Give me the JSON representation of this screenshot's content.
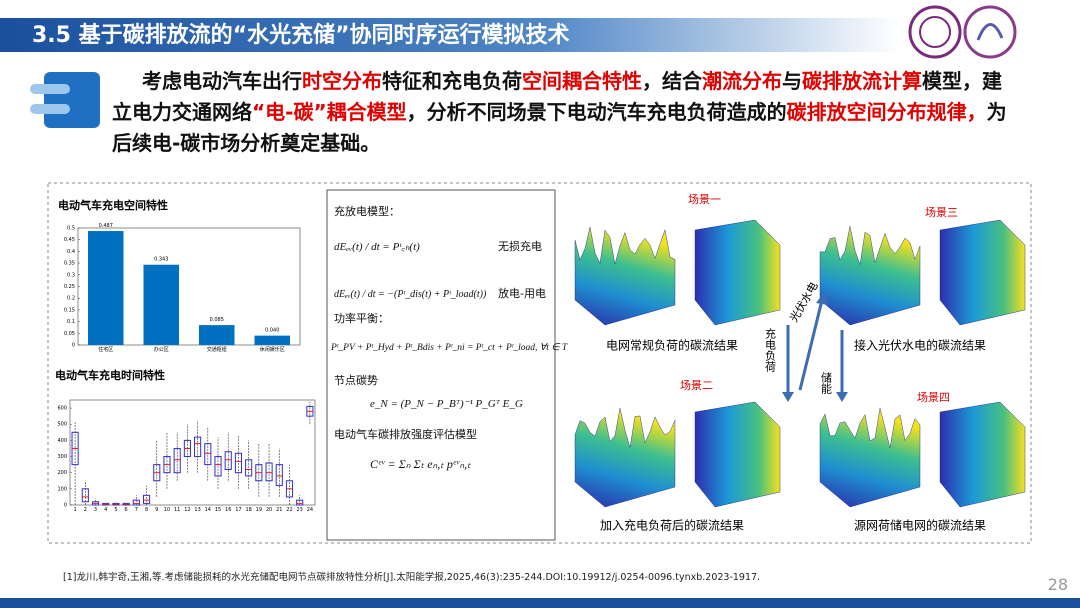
{
  "header": {
    "title": "3.5 基于碳排放流的“水光充储”协同时序运行模拟技术"
  },
  "intro": {
    "segments": [
      {
        "text": "考虑电动汽车出行",
        "highlight": false
      },
      {
        "text": "时空分布",
        "highlight": true
      },
      {
        "text": "特征和充电负荷",
        "highlight": false
      },
      {
        "text": "空间耦合特性",
        "highlight": true
      },
      {
        "text": "，结合",
        "highlight": false
      },
      {
        "text": "潮流分布",
        "highlight": true
      },
      {
        "text": "与",
        "highlight": false
      },
      {
        "text": "碳排放流计算",
        "highlight": true
      },
      {
        "text": "模型，建立电力交通网络",
        "highlight": false
      },
      {
        "text": "“电-碳”耦合模型",
        "highlight": true
      },
      {
        "text": "，分析不同场景下电动汽车充电负荷造成的",
        "highlight": false
      },
      {
        "text": "碳排放空间分布规律，",
        "highlight": true
      },
      {
        "text": "为后续电-碳市场分析奠定基础。",
        "highlight": false
      }
    ]
  },
  "chart_data": [
    {
      "type": "bar",
      "title": "电动气车充电空间特性",
      "categories": [
        "住宅区",
        "办公区",
        "交通枢纽",
        "休闲娱乐区"
      ],
      "values": [
        0.487,
        0.343,
        0.085,
        0.04
      ],
      "value_labels": [
        "0.487",
        "0.343",
        "0.085",
        "0.040"
      ],
      "color": "#0070c0",
      "ylim": [
        0,
        0.5
      ],
      "yticks": [
        0,
        0.05,
        0.1,
        0.15,
        0.2,
        0.25,
        0.3,
        0.35,
        0.4,
        0.45,
        0.5
      ]
    },
    {
      "type": "box",
      "title": "电动气车充电时间特性",
      "categories": [
        1,
        2,
        3,
        4,
        5,
        6,
        7,
        8,
        9,
        10,
        11,
        12,
        13,
        14,
        15,
        16,
        17,
        18,
        19,
        20,
        21,
        22,
        23,
        24
      ],
      "low": [
        0,
        0,
        0,
        0,
        0,
        0,
        0,
        0,
        50,
        100,
        150,
        200,
        200,
        150,
        100,
        150,
        100,
        100,
        50,
        50,
        50,
        0,
        0,
        500
      ],
      "q1": [
        250,
        20,
        0,
        0,
        0,
        0,
        0,
        10,
        150,
        200,
        200,
        300,
        300,
        250,
        180,
        220,
        200,
        180,
        150,
        150,
        120,
        50,
        0,
        550
      ],
      "median": [
        350,
        50,
        10,
        5,
        5,
        5,
        10,
        30,
        200,
        250,
        280,
        350,
        380,
        320,
        250,
        280,
        270,
        220,
        200,
        200,
        180,
        100,
        10,
        580
      ],
      "q3": [
        450,
        100,
        20,
        10,
        10,
        10,
        30,
        60,
        250,
        300,
        350,
        400,
        420,
        380,
        300,
        330,
        320,
        280,
        250,
        260,
        250,
        150,
        30,
        610
      ],
      "high": [
        520,
        150,
        40,
        20,
        20,
        20,
        60,
        120,
        400,
        450,
        450,
        500,
        520,
        480,
        420,
        450,
        430,
        400,
        380,
        380,
        350,
        250,
        60,
        640
      ],
      "color": "#2f2fd0",
      "median_color": "#e02020",
      "ylim": [
        0,
        650
      ],
      "yticks": [
        0,
        100,
        200,
        300,
        400,
        500,
        600
      ]
    }
  ],
  "model": {
    "heading": "充放电模型：",
    "eq1": "dEₑᵥ(t) / dt = Pᵗ꜀ₕ(t)",
    "eq1_note": "无损充电",
    "eq2": "dEₑᵥ(t) / dt = −(Pᵗ_dis(t) + Pᵗ_load(t))",
    "eq2_note": "放电-用电",
    "balance": "功率平衡：",
    "eq3": "Pᵗ_PV + Pᵗ_Hyd + Pᵗ_Bdis + Pᵗ_ni = Pᵗ_ct + Pᵗ_load, ∀t ∈ T",
    "potential": "节点碳势",
    "eq4": "e_N = (P_N − P_Bᵀ)⁻¹ P_Gᵀ E_G",
    "intensity": "电动气车碳排放强度评估模型",
    "eq5": "Cᵉᵛ = Σₙ Σₜ eₙ,ₜ pᵉᵛₙ,ₜ"
  },
  "scenes": [
    {
      "label": "场景一",
      "caption": "电网常规负荷的碳流结果"
    },
    {
      "label": "场景三",
      "caption": "接入光伏水电的碳流结果"
    },
    {
      "label": "场景二",
      "caption": "加入充电负荷后的碳流结果"
    },
    {
      "label": "场景四",
      "caption": "源网荷储电网的碳流结果"
    }
  ],
  "arrows": {
    "charging": "充电负荷",
    "pv_hydro": "光伏水电",
    "storage": "储能"
  },
  "footer": {
    "reference": "[1]龙川,韩宇奇,王湘,等.考虑储能损耗的水光充储配电网节点碳排放特性分析[J].太阳能学报,2025,46(3):235-244.DOI:10.19912/j.0254-0096.tynxb.2023-1917.",
    "page": "28"
  }
}
